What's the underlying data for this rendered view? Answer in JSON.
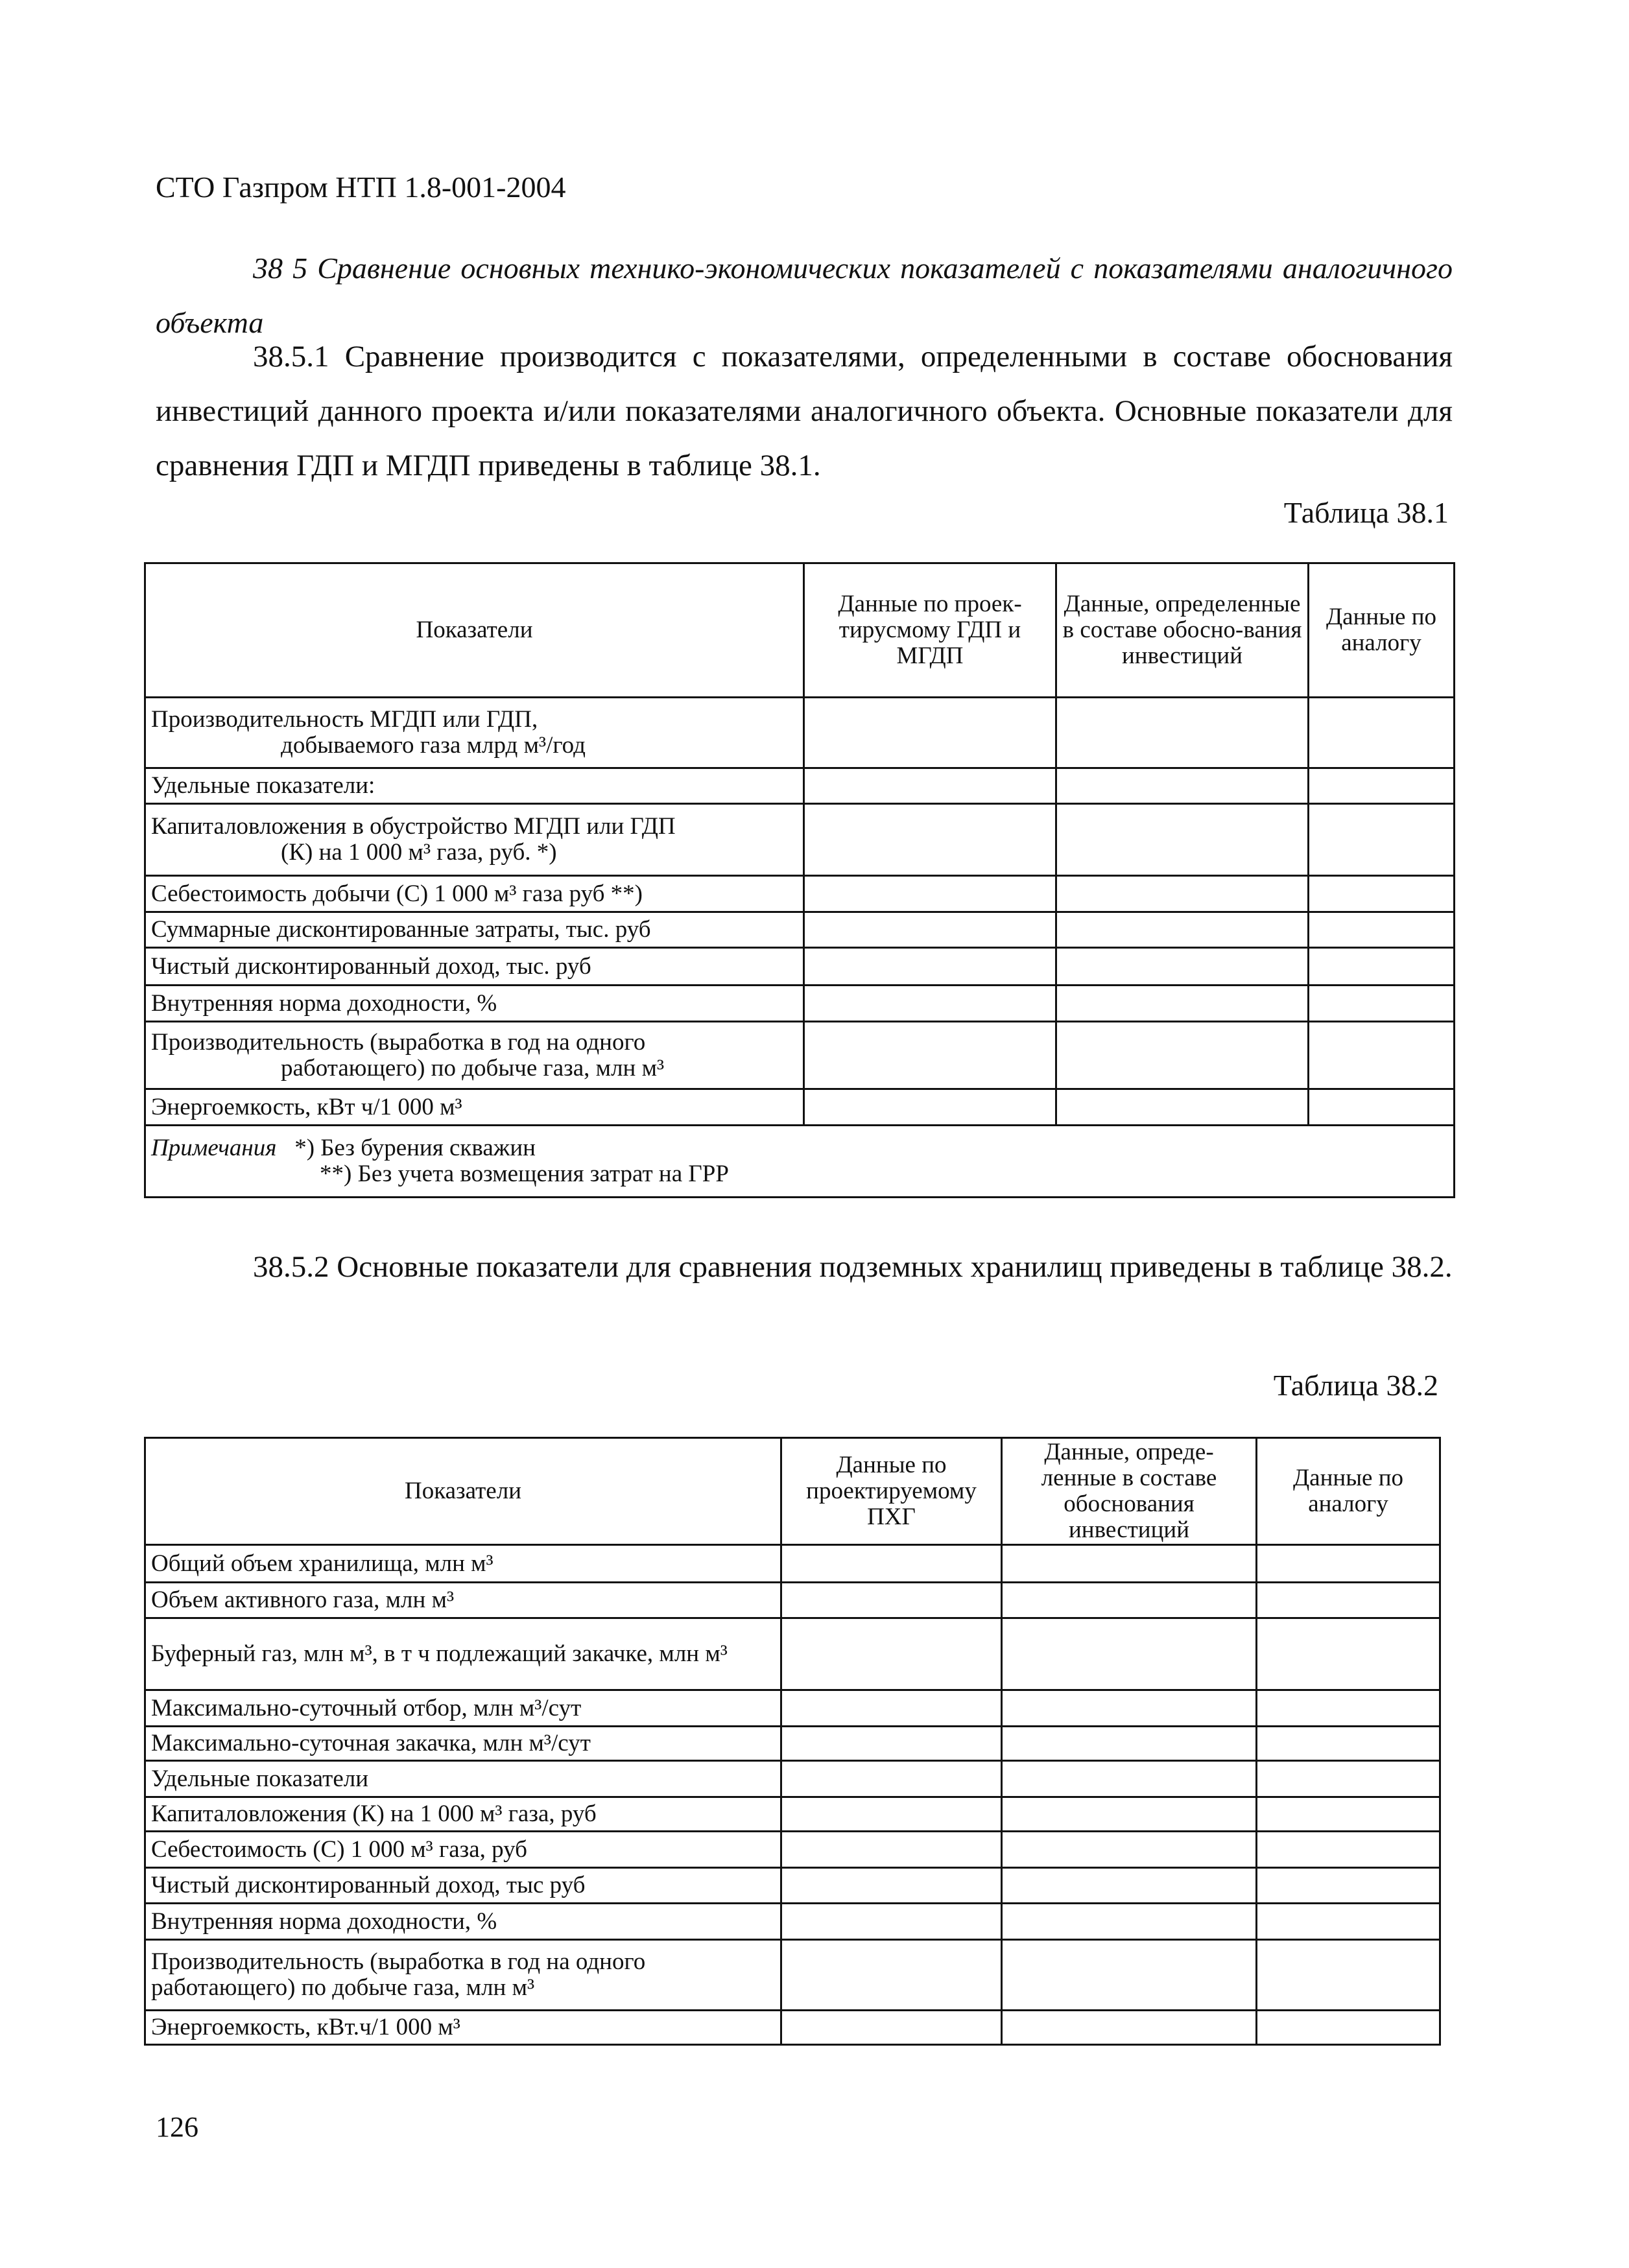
{
  "header": "СТО Газпром НТП 1.8-001-2004",
  "section_title": "38 5  Сравнение основных технико-экономических показателей с показателями аналогичного объекта",
  "paragraph_1": "38.5.1 Сравнение производится с показателями, определенными в составе обоснования инвестиций данного проекта и/или показателями аналогичного объекта. Основные показатели для сравнения ГДП и МГДП приведены в таблице 38.1.",
  "table1": {
    "caption": "Таблица 38.1",
    "headers": [
      "Показатели",
      "Данные по проек-тирусмому ГДП и МГДП",
      "Данные, определенные в составе обосно-вания инвестиций",
      "Данные по аналогу"
    ],
    "rows": [
      [
        "Производительность МГДП или ГДП,",
        "добываемого газа млрд м³/год"
      ],
      [
        "Удельные показатели:"
      ],
      [
        "Капиталовложения в обустройство МГДП или ГДП",
        "(К) на 1 000 м³ газа, руб. *)"
      ],
      [
        "Себестоимость добычи (С) 1 000 м³ газа руб  **)"
      ],
      [
        "Суммарные дисконтированные затраты, тыс. руб"
      ],
      [
        "Чистый дисконтированный доход, тыс. руб"
      ],
      [
        "Внутренняя норма доходности, %"
      ],
      [
        "Производительность (выработка в год на одного",
        "работающего) по добыче газа, млн м³"
      ],
      [
        "Энергоемкость, кВт ч/1 000 м³"
      ]
    ],
    "notes_label": "Примечания",
    "notes": [
      "*) Без бурения скважин",
      "**) Без учета возмещения затрат на ГРР"
    ]
  },
  "paragraph_2": "38.5.2 Основные показатели для сравнения подземных хранилищ приведены в таблице 38.2.",
  "table2": {
    "caption": "Таблица 38.2",
    "headers": [
      "Показатели",
      "Данные по проектируемому ПХГ",
      "Данные, опреде-ленные в составе обоснования инвестиций",
      "Данные по аналогу"
    ],
    "rows": [
      "Общий объем хранилища, млн м³",
      "Объем активного газа, млн м³",
      "Буферный газ, млн м³, в т ч  подлежащий закачке, млн м³",
      "Максимально-суточный отбор, млн м³/сут",
      "Максимально-суточная закачка, млн м³/сут",
      "Удельные показатели",
      "Капиталовложения (К) на 1 000 м³ газа, руб",
      "Себестоимость (С) 1 000 м³ газа, руб",
      "Чистый дисконтированный доход, тыс  руб",
      "Внутренняя норма доходности, %",
      "Производительность (выработка в год на одного работающего) по добыче газа, млн м³",
      "Энергоемкость, кВт.ч/1 000 м³"
    ]
  },
  "page_number": "126"
}
